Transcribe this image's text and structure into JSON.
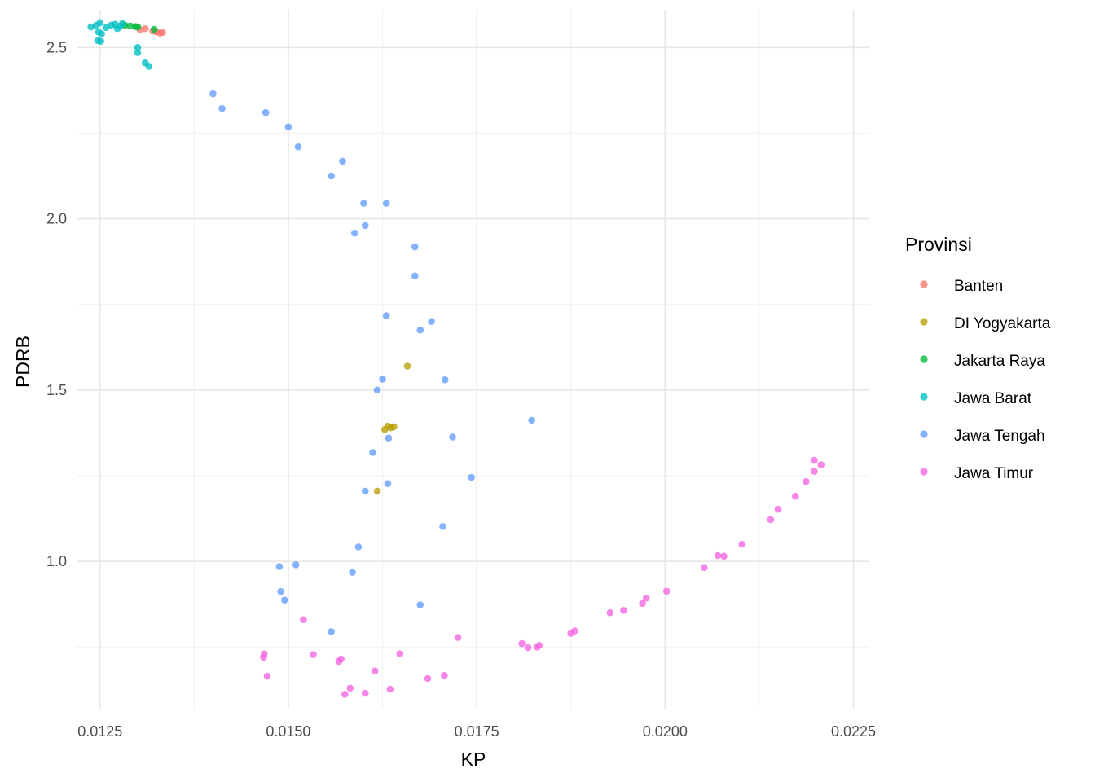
{
  "chart_data": {
    "type": "scatter",
    "xlabel": "KP",
    "ylabel": "PDRB",
    "xlim": [
      0.0122,
      0.0227
    ],
    "ylim": [
      0.57,
      2.61
    ],
    "xticks": [
      0.0125,
      0.015,
      0.0175,
      0.02,
      0.0225
    ],
    "xtick_labels": [
      "0.0125",
      "0.0150",
      "0.0175",
      "0.0200",
      "0.0225"
    ],
    "yticks": [
      1.0,
      1.5,
      2.0,
      2.5
    ],
    "ytick_labels": [
      "1.0",
      "1.5",
      "2.0",
      "2.5"
    ],
    "grid": true,
    "legend": {
      "title": "Provinsi",
      "placement": "right"
    },
    "series": [
      {
        "name": "Banten",
        "color": "#F8766D",
        "points": [
          [
            0.01303,
            2.552
          ],
          [
            0.0131,
            2.555
          ],
          [
            0.0132,
            2.548
          ],
          [
            0.01325,
            2.545
          ],
          [
            0.0133,
            2.542
          ],
          [
            0.01333,
            2.544
          ]
        ]
      },
      {
        "name": "DI Yogyakarta",
        "color": "#B79F00",
        "points": [
          [
            0.01658,
            1.57
          ],
          [
            0.01632,
            1.395
          ],
          [
            0.01636,
            1.39
          ],
          [
            0.01628,
            1.385
          ],
          [
            0.0164,
            1.393
          ],
          [
            0.01618,
            1.205
          ]
        ]
      },
      {
        "name": "Jakarta Raya",
        "color": "#00BA38",
        "points": [
          [
            0.01283,
            2.565
          ],
          [
            0.0129,
            2.563
          ],
          [
            0.01297,
            2.561
          ],
          [
            0.013,
            2.56
          ],
          [
            0.01322,
            2.553
          ]
        ]
      },
      {
        "name": "Jawa Barat",
        "color": "#00BFC4",
        "points": [
          [
            0.01238,
            2.56
          ],
          [
            0.01245,
            2.565
          ],
          [
            0.0125,
            2.572
          ],
          [
            0.01258,
            2.558
          ],
          [
            0.01265,
            2.565
          ],
          [
            0.0127,
            2.568
          ],
          [
            0.01276,
            2.562
          ],
          [
            0.0128,
            2.57
          ],
          [
            0.01273,
            2.555
          ],
          [
            0.01248,
            2.545
          ],
          [
            0.01252,
            2.54
          ],
          [
            0.01247,
            2.52
          ],
          [
            0.01251,
            2.518
          ],
          [
            0.013,
            2.5
          ],
          [
            0.013,
            2.485
          ],
          [
            0.0131,
            2.455
          ],
          [
            0.01315,
            2.445
          ]
        ]
      },
      {
        "name": "Jawa Tengah",
        "color": "#619CFF",
        "points": [
          [
            0.014,
            2.365
          ],
          [
            0.01412,
            2.322
          ],
          [
            0.0147,
            2.31
          ],
          [
            0.015,
            2.268
          ],
          [
            0.01513,
            2.21
          ],
          [
            0.01572,
            2.168
          ],
          [
            0.01557,
            2.125
          ],
          [
            0.016,
            2.045
          ],
          [
            0.0163,
            2.045
          ],
          [
            0.01588,
            1.958
          ],
          [
            0.01602,
            1.98
          ],
          [
            0.01668,
            1.918
          ],
          [
            0.01668,
            1.833
          ],
          [
            0.0163,
            1.717
          ],
          [
            0.0169,
            1.7
          ],
          [
            0.01675,
            1.675
          ],
          [
            0.01708,
            1.53
          ],
          [
            0.01625,
            1.532
          ],
          [
            0.01618,
            1.5
          ],
          [
            0.01823,
            1.412
          ],
          [
            0.01718,
            1.363
          ],
          [
            0.01633,
            1.36
          ],
          [
            0.01612,
            1.318
          ],
          [
            0.01743,
            1.245
          ],
          [
            0.01632,
            1.227
          ],
          [
            0.01602,
            1.205
          ],
          [
            0.01705,
            1.102
          ],
          [
            0.01593,
            1.042
          ],
          [
            0.01488,
            0.985
          ],
          [
            0.0151,
            0.99
          ],
          [
            0.01585,
            0.968
          ],
          [
            0.0149,
            0.912
          ],
          [
            0.01495,
            0.887
          ],
          [
            0.01675,
            0.873
          ],
          [
            0.01557,
            0.795
          ]
        ]
      },
      {
        "name": "Jawa Timur",
        "color": "#F564E3",
        "points": [
          [
            0.01468,
            0.73
          ],
          [
            0.01467,
            0.72
          ],
          [
            0.01472,
            0.665
          ],
          [
            0.0152,
            0.83
          ],
          [
            0.01533,
            0.728
          ],
          [
            0.01567,
            0.708
          ],
          [
            0.0157,
            0.715
          ],
          [
            0.01575,
            0.612
          ],
          [
            0.01582,
            0.63
          ],
          [
            0.01602,
            0.615
          ],
          [
            0.01615,
            0.68
          ],
          [
            0.01635,
            0.627
          ],
          [
            0.01648,
            0.73
          ],
          [
            0.01685,
            0.658
          ],
          [
            0.01707,
            0.667
          ],
          [
            0.01725,
            0.778
          ],
          [
            0.0181,
            0.76
          ],
          [
            0.01818,
            0.748
          ],
          [
            0.0183,
            0.75
          ],
          [
            0.01833,
            0.755
          ],
          [
            0.01875,
            0.79
          ],
          [
            0.0188,
            0.797
          ],
          [
            0.01927,
            0.85
          ],
          [
            0.01945,
            0.857
          ],
          [
            0.0197,
            0.877
          ],
          [
            0.01975,
            0.893
          ],
          [
            0.02002,
            0.913
          ],
          [
            0.02052,
            0.982
          ],
          [
            0.0207,
            1.017
          ],
          [
            0.02078,
            1.015
          ],
          [
            0.02102,
            1.05
          ],
          [
            0.0214,
            1.122
          ],
          [
            0.0215,
            1.152
          ],
          [
            0.02173,
            1.19
          ],
          [
            0.02187,
            1.233
          ],
          [
            0.02198,
            1.263
          ],
          [
            0.02198,
            1.295
          ],
          [
            0.02207,
            1.282
          ]
        ]
      }
    ]
  }
}
